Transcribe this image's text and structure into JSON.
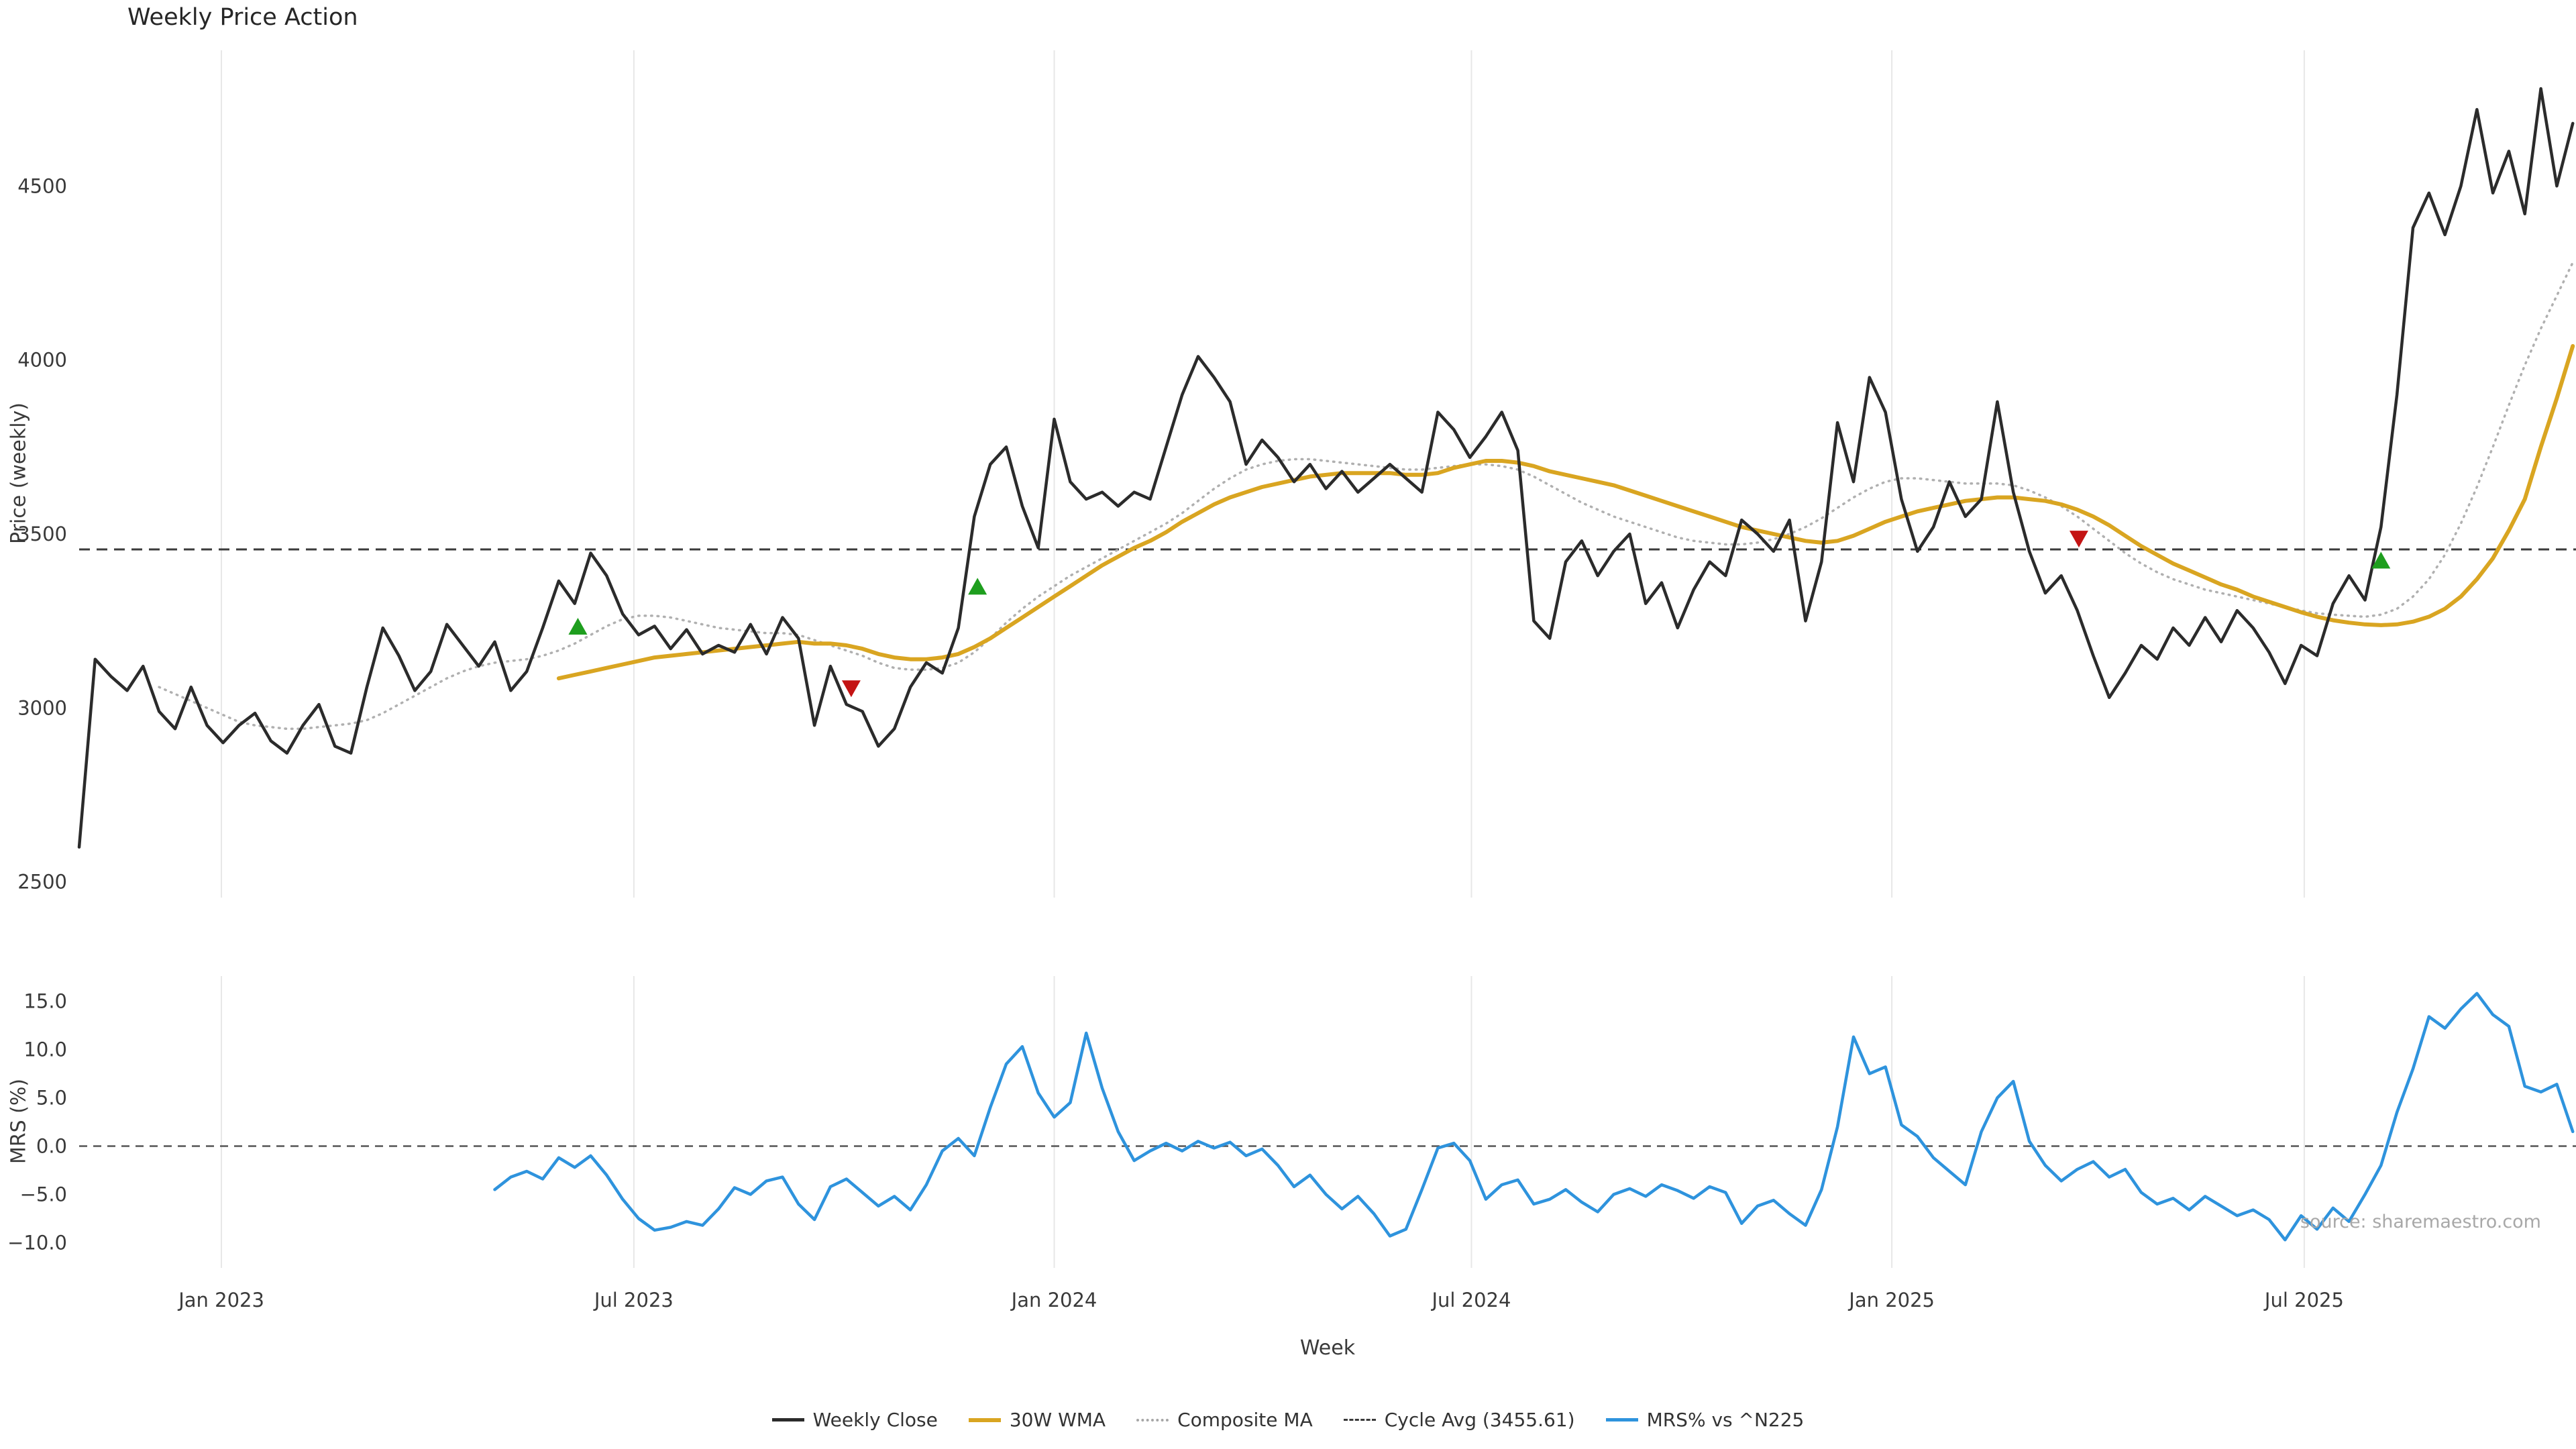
{
  "header": {
    "title": "Weekly Price Action"
  },
  "axes": {
    "price_label": "Price (weekly)",
    "mrs_label": "MRS (%)",
    "x_label": "Week"
  },
  "source_note": "source: sharemaestro.com",
  "colors": {
    "close": "#2b2b2b",
    "wma": "#D9A521",
    "composite": "#b0b0b0",
    "cycle": "#3a3a3a",
    "mrs": "#2E93DD",
    "buy": "#1e9e1e",
    "sell": "#c41414",
    "grid": "#e7e7e7",
    "tick_text": "#3a3a3a"
  },
  "legend": [
    {
      "label": "Weekly Close",
      "style": "solid",
      "color": "#2b2b2b",
      "thickness": 5
    },
    {
      "label": "30W WMA",
      "style": "solid",
      "color": "#D9A521",
      "thickness": 6
    },
    {
      "label": "Composite MA",
      "style": "dotted",
      "color": "#a6a6a6",
      "thickness": 4
    },
    {
      "label": "Cycle Avg (3455.61)",
      "style": "dashed",
      "color": "#3a3a3a",
      "thickness": 3
    },
    {
      "label": "MRS% vs ^N225",
      "style": "solid",
      "color": "#2E93DD",
      "thickness": 5
    }
  ],
  "chart_data": {
    "type": "line",
    "x_unit": "week_index",
    "n_weeks": 157,
    "x_range_note": "weekly data from ~Nov 2022 to ~Nov 2025",
    "x_ticks": [
      {
        "week": 8.9,
        "label": "Jan 2023"
      },
      {
        "week": 34.7,
        "label": "Jul 2023"
      },
      {
        "week": 61.0,
        "label": "Jan 2024"
      },
      {
        "week": 87.1,
        "label": "Jul 2024"
      },
      {
        "week": 113.4,
        "label": "Jan 2025"
      },
      {
        "week": 139.2,
        "label": "Jul 2025"
      }
    ],
    "panels": [
      {
        "name": "price",
        "ylabel": "Price (weekly)",
        "ylim": [
          2455,
          4890
        ],
        "y_ticks": [
          {
            "value": 2500,
            "label": "2500"
          },
          {
            "value": 3000,
            "label": "3000"
          },
          {
            "value": 3500,
            "label": "3500"
          },
          {
            "value": 4000,
            "label": "4000"
          },
          {
            "value": 4500,
            "label": "4500"
          }
        ],
        "cycle_avg": 3455.61,
        "series": [
          {
            "name": "Weekly Close",
            "color": "#2b2b2b",
            "width": 4.5,
            "dash": null,
            "start_week": 0,
            "values": [
              2600,
              3140,
              3090,
              3050,
              3120,
              2990,
              2940,
              3060,
              2950,
              2900,
              2950,
              2985,
              2905,
              2870,
              2950,
              3010,
              2890,
              2870,
              3060,
              3230,
              3150,
              3050,
              3105,
              3240,
              3180,
              3120,
              3190,
              3050,
              3105,
              3230,
              3365,
              3300,
              3445,
              3380,
              3270,
              3210,
              3235,
              3170,
              3225,
              3155,
              3180,
              3160,
              3240,
              3155,
              3260,
              3200,
              2950,
              3120,
              3010,
              2990,
              2890,
              2940,
              3060,
              3130,
              3100,
              3230,
              3550,
              3700,
              3750,
              3580,
              3460,
              3830,
              3650,
              3600,
              3620,
              3580,
              3620,
              3600,
              3750,
              3900,
              4010,
              3950,
              3880,
              3700,
              3770,
              3720,
              3650,
              3700,
              3630,
              3680,
              3620,
              3660,
              3700,
              3660,
              3620,
              3850,
              3800,
              3720,
              3780,
              3850,
              3740,
              3250,
              3200,
              3420,
              3480,
              3380,
              3450,
              3500,
              3300,
              3360,
              3230,
              3340,
              3420,
              3380,
              3540,
              3500,
              3450,
              3540,
              3250,
              3420,
              3820,
              3650,
              3950,
              3850,
              3600,
              3450,
              3520,
              3650,
              3550,
              3600,
              3880,
              3620,
              3450,
              3330,
              3380,
              3280,
              3150,
              3030,
              3100,
              3180,
              3140,
              3230,
              3180,
              3260,
              3190,
              3280,
              3230,
              3160,
              3070,
              3180,
              3150,
              3300,
              3380,
              3310,
              3520,
              3900,
              4380,
              4480,
              4360,
              4500,
              4720,
              4480,
              4600,
              4420,
              4780,
              4500,
              4680
            ]
          },
          {
            "name": "30W WMA",
            "color": "#D9A521",
            "width": 6,
            "dash": null,
            "start_week": 30,
            "values": [
              3085,
              3095,
              3105,
              3115,
              3125,
              3135,
              3145,
              3150,
              3155,
              3160,
              3165,
              3170,
              3175,
              3180,
              3185,
              3190,
              3185,
              3185,
              3180,
              3170,
              3155,
              3145,
              3140,
              3140,
              3145,
              3155,
              3175,
              3200,
              3230,
              3260,
              3290,
              3320,
              3350,
              3380,
              3410,
              3435,
              3460,
              3480,
              3505,
              3535,
              3560,
              3585,
              3605,
              3620,
              3635,
              3645,
              3655,
              3665,
              3670,
              3675,
              3675,
              3675,
              3675,
              3670,
              3670,
              3675,
              3690,
              3700,
              3710,
              3710,
              3705,
              3695,
              3680,
              3670,
              3660,
              3650,
              3640,
              3625,
              3610,
              3595,
              3580,
              3565,
              3550,
              3535,
              3520,
              3510,
              3500,
              3490,
              3480,
              3475,
              3480,
              3495,
              3515,
              3535,
              3550,
              3565,
              3575,
              3585,
              3595,
              3600,
              3605,
              3605,
              3600,
              3595,
              3585,
              3570,
              3550,
              3525,
              3495,
              3465,
              3440,
              3415,
              3395,
              3375,
              3355,
              3340,
              3320,
              3305,
              3290,
              3275,
              3262,
              3252,
              3245,
              3240,
              3238,
              3240,
              3248,
              3262,
              3285,
              3320,
              3370,
              3430,
              3510,
              3600,
              3750,
              3890,
              4040
            ]
          },
          {
            "name": "Composite MA",
            "color": "#b0b0b0",
            "width": 3.5,
            "dash": "1.5 8",
            "start_week": 5,
            "values": [
              3060,
              3040,
              3020,
              3000,
              2980,
              2960,
              2950,
              2945,
              2940,
              2940,
              2945,
              2950,
              2955,
              2965,
              2985,
              3010,
              3035,
              3060,
              3085,
              3105,
              3120,
              3130,
              3135,
              3140,
              3150,
              3165,
              3185,
              3210,
              3235,
              3255,
              3265,
              3265,
              3260,
              3250,
              3240,
              3230,
              3225,
              3220,
              3215,
              3215,
              3210,
              3195,
              3180,
              3165,
              3150,
              3130,
              3115,
              3110,
              3110,
              3115,
              3130,
              3160,
              3200,
              3245,
              3285,
              3320,
              3350,
              3380,
              3405,
              3430,
              3455,
              3480,
              3505,
              3530,
              3560,
              3595,
              3630,
              3660,
              3685,
              3700,
              3710,
              3715,
              3715,
              3710,
              3705,
              3700,
              3695,
              3690,
              3685,
              3685,
              3690,
              3695,
              3700,
              3700,
              3695,
              3685,
              3665,
              3640,
              3615,
              3590,
              3570,
              3550,
              3535,
              3520,
              3505,
              3490,
              3480,
              3475,
              3470,
              3470,
              3475,
              3485,
              3500,
              3520,
              3545,
              3575,
              3605,
              3630,
              3650,
              3660,
              3660,
              3655,
              3650,
              3645,
              3645,
              3645,
              3640,
              3625,
              3605,
              3580,
              3550,
              3515,
              3480,
              3445,
              3415,
              3390,
              3370,
              3355,
              3340,
              3330,
              3320,
              3310,
              3300,
              3290,
              3280,
              3272,
              3268,
              3265,
              3262,
              3268,
              3285,
              3320,
              3370,
              3440,
              3530,
              3635,
              3750,
              3870,
              3985,
              4090,
              4185,
              4280
            ]
          }
        ],
        "markers": {
          "buy": [
            {
              "week": 31.2,
              "value": 3230
            },
            {
              "week": 56.2,
              "value": 3345
            },
            {
              "week": 144.0,
              "value": 3420
            }
          ],
          "sell": [
            {
              "week": 48.3,
              "value": 3060
            },
            {
              "week": 125.1,
              "value": 3490
            }
          ]
        }
      },
      {
        "name": "mrs",
        "ylabel": "MRS (%)",
        "ylim": [
          -12.6,
          17.6
        ],
        "y_ticks": [
          {
            "value": 15,
            "label": "15.0"
          },
          {
            "value": 10,
            "label": "10.0"
          },
          {
            "value": 5,
            "label": "5.0"
          },
          {
            "value": 0,
            "label": "0.0"
          },
          {
            "value": -5,
            "label": "−5.0"
          },
          {
            "value": -10,
            "label": "−10.0"
          }
        ],
        "zero_line": 0,
        "series": [
          {
            "name": "MRS% vs ^N225",
            "color": "#2E93DD",
            "width": 4.5,
            "dash": null,
            "start_week": 26,
            "values": [
              -4.5,
              -3.2,
              -2.6,
              -3.4,
              -1.2,
              -2.2,
              -1.0,
              -3.0,
              -5.5,
              -7.5,
              -8.7,
              -8.4,
              -7.8,
              -8.2,
              -6.5,
              -4.3,
              -5.0,
              -3.6,
              -3.2,
              -6.0,
              -7.6,
              -4.2,
              -3.4,
              -4.8,
              -6.2,
              -5.2,
              -6.6,
              -4.0,
              -0.5,
              0.8,
              -1.0,
              4.0,
              8.5,
              10.3,
              5.5,
              3.0,
              4.5,
              11.7,
              6.0,
              1.5,
              -1.5,
              -0.5,
              0.3,
              -0.5,
              0.5,
              -0.2,
              0.4,
              -1.0,
              -0.3,
              -2.0,
              -4.2,
              -3.0,
              -5.0,
              -6.5,
              -5.2,
              -7.0,
              -9.3,
              -8.6,
              -4.5,
              -0.2,
              0.3,
              -1.5,
              -5.5,
              -4.0,
              -3.5,
              -6.0,
              -5.5,
              -4.5,
              -5.8,
              -6.8,
              -5.0,
              -4.4,
              -5.2,
              -4.0,
              -4.6,
              -5.4,
              -4.2,
              -4.8,
              -8.0,
              -6.2,
              -5.6,
              -7.0,
              -8.2,
              -4.5,
              2.0,
              11.3,
              7.5,
              8.2,
              2.2,
              1.0,
              -1.2,
              -2.6,
              -4.0,
              1.5,
              5.0,
              6.7,
              0.5,
              -2.0,
              -3.6,
              -2.4,
              -1.6,
              -3.2,
              -2.4,
              -4.8,
              -6.0,
              -5.4,
              -6.6,
              -5.2,
              -6.2,
              -7.2,
              -6.6,
              -7.6,
              -9.7,
              -7.2,
              -8.6,
              -6.4,
              -7.8,
              -5.0,
              -2.0,
              3.5,
              8.0,
              13.4,
              12.2,
              14.2,
              15.8,
              13.6,
              12.4,
              6.2,
              5.6,
              6.4,
              1.5
            ]
          }
        ]
      }
    ]
  }
}
